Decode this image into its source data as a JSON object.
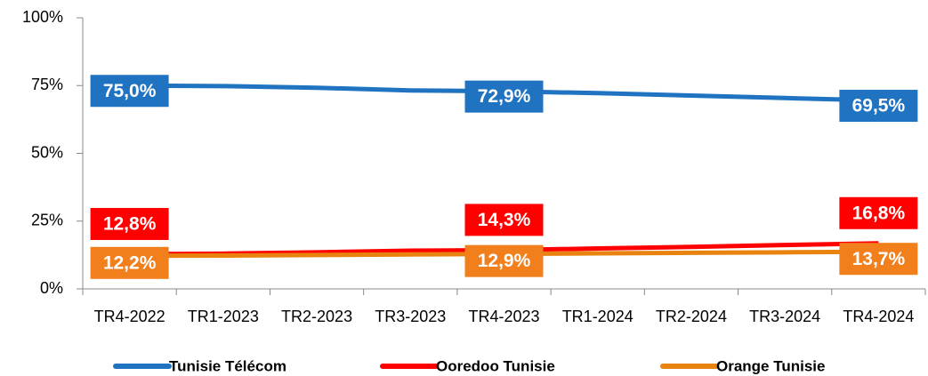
{
  "chart_data": {
    "type": "line",
    "categories": [
      "TR4-2022",
      "TR1-2023",
      "TR2-2023",
      "TR3-2023",
      "TR4-2023",
      "TR1-2024",
      "TR2-2024",
      "TR3-2024",
      "TR4-2024"
    ],
    "series": [
      {
        "name": "Tunisie Télécom",
        "color": "#1f73c1",
        "values": [
          75.0,
          74.8,
          74.2,
          73.2,
          72.9,
          72.2,
          71.3,
          70.4,
          69.5
        ],
        "value_labels": [
          "75,0%",
          null,
          null,
          null,
          "72,9%",
          null,
          null,
          null,
          "69,5%"
        ]
      },
      {
        "name": "Ooredoo Tunisie",
        "color": "#ff0000",
        "values": [
          12.8,
          13.0,
          13.5,
          14.1,
          14.3,
          14.9,
          15.5,
          16.2,
          16.8
        ],
        "value_labels": [
          "12,8%",
          null,
          null,
          null,
          "14,3%",
          null,
          null,
          null,
          "16,8%"
        ]
      },
      {
        "name": "Orange Tunisie",
        "color": "#e8830f",
        "values": [
          12.2,
          12.3,
          12.5,
          12.7,
          12.9,
          13.1,
          13.3,
          13.5,
          13.7
        ],
        "value_labels": [
          "12,2%",
          null,
          null,
          null,
          "12,9%",
          null,
          null,
          null,
          "13,7%"
        ]
      }
    ],
    "ylim": [
      0,
      100
    ],
    "yticks": [
      {
        "value": 0,
        "label": "0%"
      },
      {
        "value": 25,
        "label": "25%"
      },
      {
        "value": 50,
        "label": "50%"
      },
      {
        "value": 75,
        "label": "75%"
      },
      {
        "value": 100,
        "label": "100%"
      }
    ],
    "legend": "bottom"
  }
}
